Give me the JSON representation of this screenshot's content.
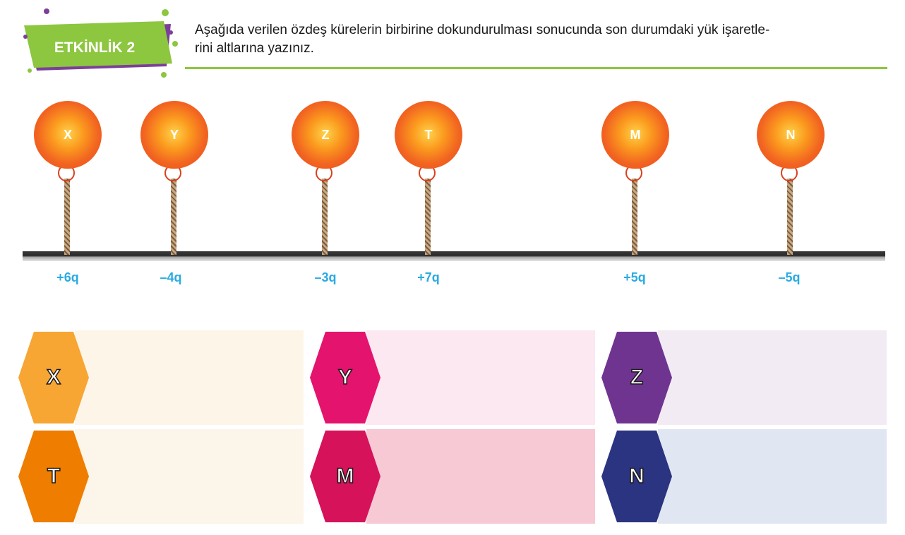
{
  "header": {
    "badge_text": "ETKİNLİK 2",
    "instruction": "Aşağıda verilen özdeş kürelerin birbirine dokundurulması sonucunda son durumdaki yük işaretle-\nrini altlarına yazınız.",
    "colors": {
      "badge_green": "#8dc63f",
      "badge_purple": "#7b3f99",
      "rule": "#8dc63f"
    }
  },
  "spheres": [
    {
      "label": "X",
      "charge": "+6q"
    },
    {
      "label": "Y",
      "charge": "–4q"
    },
    {
      "label": "Z",
      "charge": "–3q"
    },
    {
      "label": "T",
      "charge": "+7q"
    },
    {
      "label": "M",
      "charge": "+5q"
    },
    {
      "label": "N",
      "charge": "–5q"
    }
  ],
  "answer_boxes": [
    {
      "label": "X",
      "hex_color": "#f7a533",
      "fill_color": "#fdf5e8"
    },
    {
      "label": "T",
      "hex_color": "#ef7d00",
      "fill_color": "#fcf5e9"
    },
    {
      "label": "Y",
      "hex_color": "#e4136e",
      "fill_color": "#fbe8f1"
    },
    {
      "label": "M",
      "hex_color": "#d5125a",
      "fill_color": "#f7c9d4"
    },
    {
      "label": "Z",
      "hex_color": "#6f3490",
      "fill_color": "#f2ebf4"
    },
    {
      "label": "N",
      "hex_color": "#2b3480",
      "fill_color": "#e0e7f2"
    }
  ]
}
